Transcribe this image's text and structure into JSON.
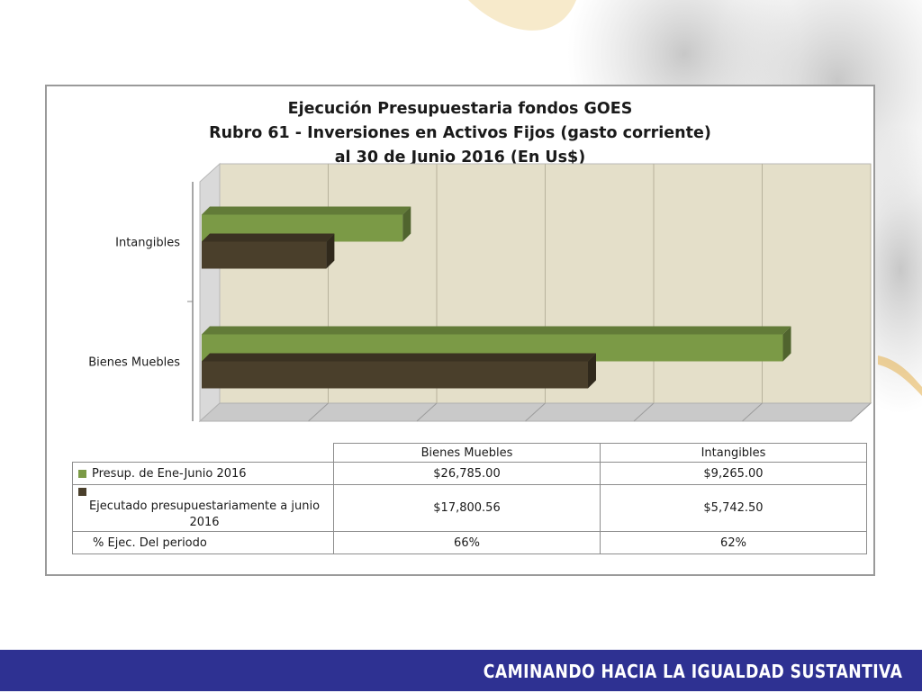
{
  "chart_data": {
    "type": "bar",
    "orientation": "horizontal",
    "title_lines": [
      "Ejecución Presupuestaria fondos GOES",
      "Rubro 61 - Inversiones en Activos Fijos (gasto corriente)",
      "al 30 de Junio 2016 (En Us$)"
    ],
    "categories": [
      "Bienes Muebles",
      "Intangibles"
    ],
    "series": [
      {
        "name": "Presup. de Ene-Junio 2016",
        "values": [
          26785.0,
          9265.0
        ],
        "color": "#7b9a46"
      },
      {
        "name": "Ejecutado presupuestariamente a junio 2016",
        "values": [
          17800.56,
          5742.5
        ],
        "color": "#4a3f2b"
      }
    ],
    "xlim": [
      0,
      30000
    ],
    "grid": true,
    "table": {
      "headers": [
        "Bienes Muebles",
        "Intangibles"
      ],
      "rows": [
        {
          "label": "Presup. de Ene-Junio 2016",
          "values": [
            "$26,785.00",
            "$9,265.00"
          ],
          "key_color": "#7b9a46"
        },
        {
          "label": "Ejecutado presupuestariamente a junio 2016",
          "values": [
            "$17,800.56",
            "$5,742.50"
          ],
          "key_color": "#4a3f2b"
        },
        {
          "label": "% Ejec. Del periodo",
          "values": [
            "66%",
            "62%"
          ]
        }
      ]
    }
  },
  "footer": {
    "slogan": "CAMINANDO HACIA LA IGUALDAD SUSTANTIVA"
  },
  "colors": {
    "footer_bg": "#2e3192",
    "plot_bg": "#e4dfc9"
  }
}
